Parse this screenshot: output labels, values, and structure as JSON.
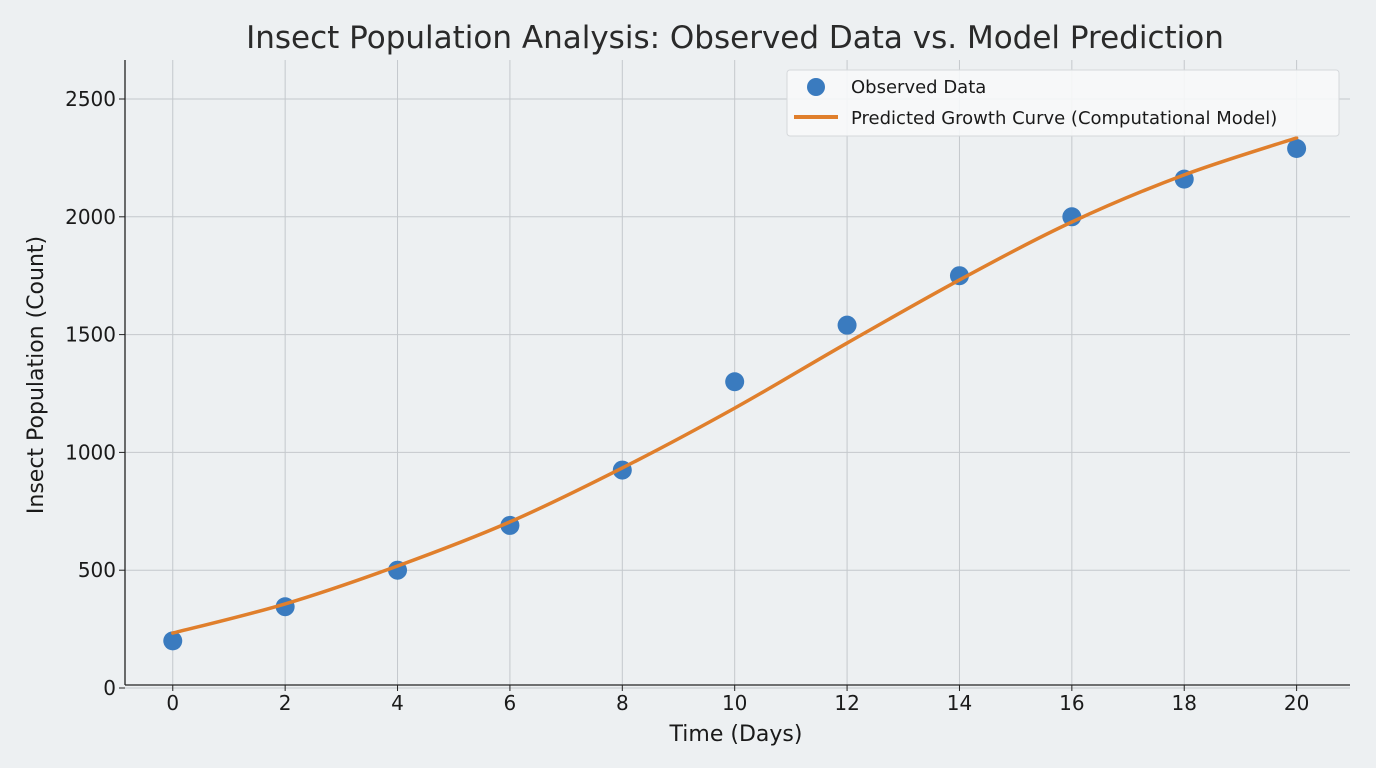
{
  "chart_data": {
    "type": "line",
    "title": "Insect Population Analysis: Observed Data vs. Model Prediction",
    "xlabel": "Time (Days)",
    "ylabel": "Insect Population (Count)",
    "xlim": [
      -0.85,
      20.95
    ],
    "ylim": [
      0,
      2660
    ],
    "xticks": [
      0,
      2,
      4,
      6,
      8,
      10,
      12,
      14,
      16,
      18,
      20
    ],
    "yticks": [
      0,
      500,
      1000,
      1500,
      2000,
      2500
    ],
    "grid": true,
    "legend_position": "top-right",
    "series": [
      {
        "name": "Observed Data",
        "kind": "scatter",
        "color": "#3a7bbf",
        "x": [
          0,
          2,
          4,
          6,
          8,
          10,
          12,
          14,
          16,
          18,
          20
        ],
        "y": [
          200,
          345,
          500,
          690,
          925,
          1300,
          1540,
          1750,
          2000,
          2160,
          2290
        ]
      },
      {
        "name": "Predicted Growth Curve (Computational Model)",
        "kind": "line",
        "color": "#e07f2c",
        "x": [
          0,
          2,
          4,
          6,
          8,
          10,
          12,
          14,
          16,
          18,
          20
        ],
        "y": [
          233,
          357,
          518,
          705,
          934,
          1188,
          1464,
          1732,
          1978,
          2178,
          2335
        ]
      }
    ]
  }
}
